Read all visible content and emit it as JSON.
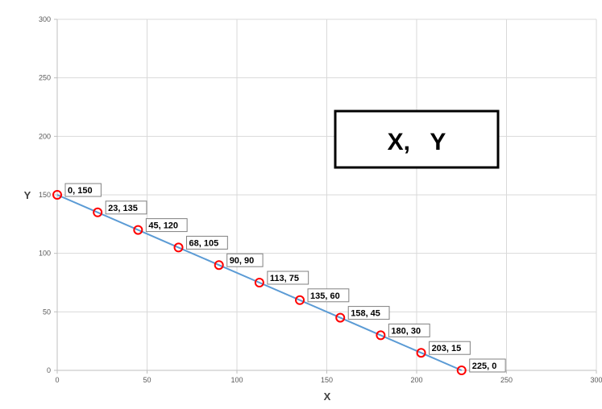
{
  "chart_data": {
    "type": "scatter",
    "title": "",
    "xlabel": "X",
    "ylabel": "Y",
    "xlim": [
      0,
      300
    ],
    "ylim": [
      0,
      300
    ],
    "x_ticks": [
      "0",
      "50",
      "100",
      "150",
      "200",
      "250",
      "300"
    ],
    "y_ticks": [
      "0",
      "50",
      "100",
      "150",
      "200",
      "250",
      "300"
    ],
    "grid": true,
    "series": [
      {
        "x": [
          0,
          22.5,
          45,
          67.5,
          90,
          112.5,
          135,
          157.5,
          180,
          202.5,
          225
        ],
        "y": [
          150,
          135,
          120,
          105,
          90,
          75,
          60,
          45,
          30,
          15,
          0
        ],
        "point_labels": [
          "0, 150",
          "23, 135",
          "45, 120",
          "68, 105",
          "90, 90",
          "113, 75",
          "135, 60",
          "158, 45",
          "180, 30",
          "203, 15",
          "225, 0"
        ],
        "line_color": "#5b9bd5",
        "marker_color": "#ff0000",
        "marker": "open-circle"
      }
    ],
    "annotation": "X,   Y"
  }
}
